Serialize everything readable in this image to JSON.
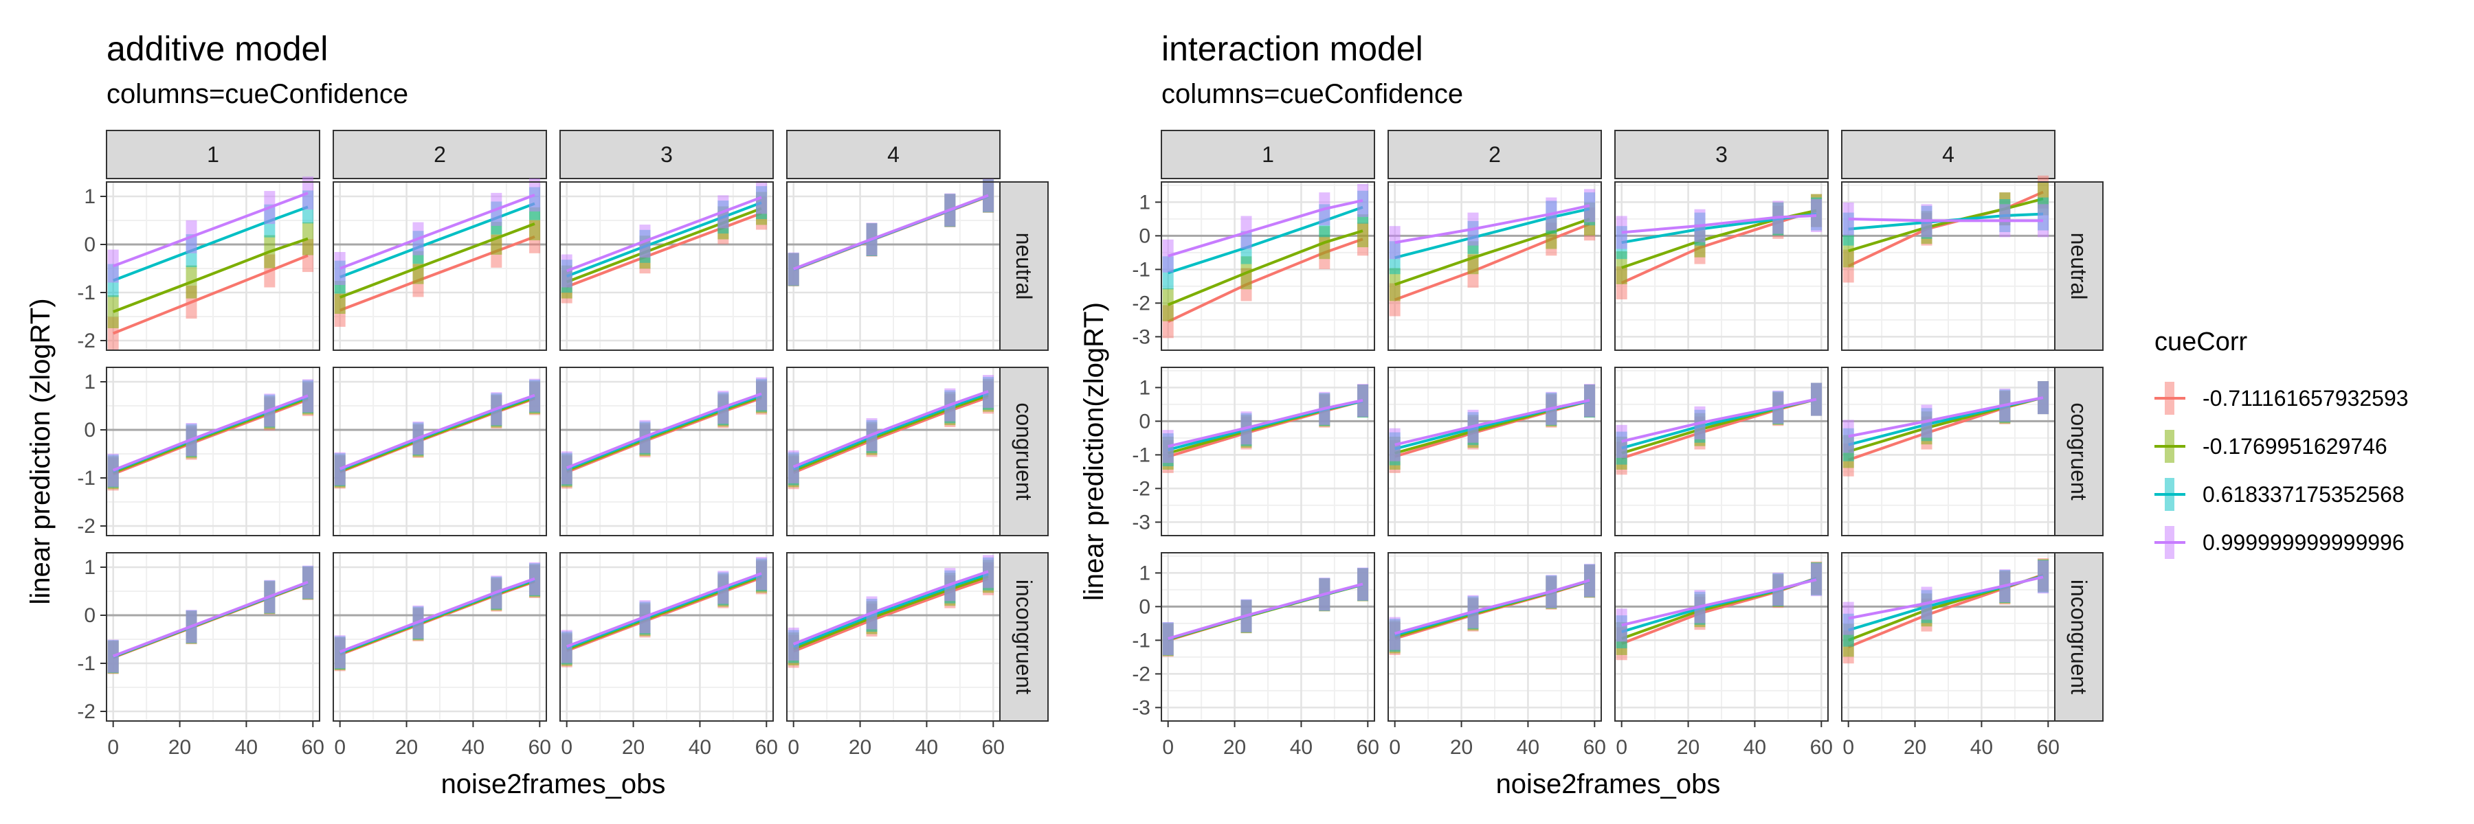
{
  "chart_data": [
    {
      "type": "line",
      "title": "additive model",
      "subtitle": "columns=cueConfidence",
      "xlabel": "noise2frames_obs",
      "ylabel": "linear prediction (zlogRT)",
      "xlim": [
        -2,
        62
      ],
      "ylim": [
        -2.2,
        1.3
      ],
      "x_ticks": [
        "0",
        "20",
        "40",
        "60"
      ],
      "y_ticks": [
        "-2",
        "-1",
        "0",
        "1"
      ],
      "x_tick_values": [
        0,
        20,
        40,
        60
      ],
      "y_tick_values": [
        -2,
        -1,
        0,
        1
      ],
      "col_labels": [
        "1",
        "2",
        "3",
        "4"
      ],
      "row_labels": [
        "neutral",
        "congruent",
        "incongruent"
      ],
      "x": [
        0,
        23.5,
        47,
        58.5
      ],
      "panels": [
        [
          [
            [
              -1.85,
              -1.2,
              -0.55,
              -0.23
            ],
            [
              -1.4,
              -0.78,
              -0.15,
              0.12
            ],
            [
              -0.75,
              -0.13,
              0.49,
              0.78
            ],
            [
              -0.45,
              0.16,
              0.77,
              1.07
            ]
          ],
          [
            [
              -1.37,
              -0.75,
              -0.14,
              0.16
            ],
            [
              -1.1,
              -0.48,
              0.13,
              0.43
            ],
            [
              -0.68,
              -0.06,
              0.55,
              0.85
            ],
            [
              -0.5,
              0.12,
              0.73,
              1.03
            ]
          ],
          [
            [
              -0.88,
              -0.26,
              0.35,
              0.65
            ],
            [
              -0.78,
              -0.16,
              0.45,
              0.75
            ],
            [
              -0.66,
              -0.04,
              0.57,
              0.87
            ],
            [
              -0.55,
              0.07,
              0.68,
              0.98
            ]
          ],
          [
            [
              -0.53,
              0.09,
              0.7,
              1.0
            ],
            [
              -0.52,
              0.1,
              0.71,
              1.01
            ],
            [
              -0.52,
              0.1,
              0.71,
              1.01
            ],
            [
              -0.51,
              0.11,
              0.72,
              1.02
            ]
          ]
        ],
        [
          [
            [
              -0.92,
              -0.28,
              0.33,
              0.63
            ],
            [
              -0.89,
              -0.25,
              0.36,
              0.66
            ],
            [
              -0.86,
              -0.22,
              0.39,
              0.69
            ],
            [
              -0.84,
              -0.2,
              0.41,
              0.71
            ]
          ],
          [
            [
              -0.88,
              -0.24,
              0.37,
              0.65
            ],
            [
              -0.86,
              -0.22,
              0.39,
              0.67
            ],
            [
              -0.83,
              -0.19,
              0.42,
              0.7
            ],
            [
              -0.81,
              -0.17,
              0.44,
              0.72
            ]
          ],
          [
            [
              -0.88,
              -0.23,
              0.38,
              0.66
            ],
            [
              -0.85,
              -0.2,
              0.41,
              0.69
            ],
            [
              -0.82,
              -0.17,
              0.44,
              0.72
            ],
            [
              -0.79,
              -0.14,
              0.47,
              0.75
            ]
          ],
          [
            [
              -0.89,
              -0.22,
              0.4,
              0.68
            ],
            [
              -0.85,
              -0.18,
              0.44,
              0.72
            ],
            [
              -0.81,
              -0.14,
              0.48,
              0.76
            ],
            [
              -0.77,
              -0.1,
              0.52,
              0.8
            ]
          ]
        ],
        [
          [
            [
              -0.88,
              -0.26,
              0.36,
              0.66
            ],
            [
              -0.87,
              -0.25,
              0.37,
              0.67
            ],
            [
              -0.86,
              -0.24,
              0.38,
              0.68
            ],
            [
              -0.85,
              -0.23,
              0.39,
              0.69
            ]
          ],
          [
            [
              -0.82,
              -0.2,
              0.42,
              0.7
            ],
            [
              -0.8,
              -0.18,
              0.44,
              0.72
            ],
            [
              -0.78,
              -0.16,
              0.46,
              0.74
            ],
            [
              -0.76,
              -0.14,
              0.48,
              0.76
            ]
          ],
          [
            [
              -0.74,
              -0.12,
              0.49,
              0.78
            ],
            [
              -0.71,
              -0.09,
              0.52,
              0.81
            ],
            [
              -0.68,
              -0.06,
              0.55,
              0.84
            ],
            [
              -0.65,
              -0.03,
              0.58,
              0.87
            ]
          ],
          [
            [
              -0.75,
              -0.1,
              0.49,
              0.76
            ],
            [
              -0.7,
              -0.05,
              0.54,
              0.81
            ],
            [
              -0.65,
              0.0,
              0.59,
              0.86
            ],
            [
              -0.6,
              0.05,
              0.64,
              0.91
            ]
          ]
        ]
      ]
    },
    {
      "type": "line",
      "title": "interaction model",
      "subtitle": "columns=cueConfidence",
      "xlabel": "noise2frames_obs",
      "ylabel": "linear prediction(zlogRT)",
      "xlim": [
        -2,
        62
      ],
      "ylim": [
        -3.4,
        1.6
      ],
      "x_ticks": [
        "0",
        "20",
        "40",
        "60"
      ],
      "y_ticks": [
        "-3",
        "-2",
        "-1",
        "0",
        "1"
      ],
      "x_tick_values": [
        0,
        20,
        40,
        60
      ],
      "y_tick_values": [
        -3,
        -2,
        -1,
        0,
        1
      ],
      "col_labels": [
        "1",
        "2",
        "3",
        "4"
      ],
      "row_labels": [
        "neutral",
        "congruent",
        "incongruent"
      ],
      "x": [
        0,
        23.5,
        47,
        58.5
      ],
      "panels": [
        [
          [
            [
              -2.55,
              -1.45,
              -0.5,
              -0.1
            ],
            [
              -2.05,
              -1.1,
              -0.2,
              0.15
            ],
            [
              -1.1,
              -0.35,
              0.45,
              0.85
            ],
            [
              -0.6,
              0.1,
              0.8,
              1.05
            ]
          ],
          [
            [
              -1.9,
              -1.05,
              -0.1,
              0.35
            ],
            [
              -1.45,
              -0.65,
              0.1,
              0.5
            ],
            [
              -0.65,
              -0.05,
              0.55,
              0.8
            ],
            [
              -0.2,
              0.2,
              0.65,
              0.9
            ]
          ],
          [
            [
              -1.4,
              -0.35,
              0.4,
              0.75
            ],
            [
              -0.95,
              -0.15,
              0.5,
              0.75
            ],
            [
              -0.2,
              0.2,
              0.5,
              0.65
            ],
            [
              0.1,
              0.3,
              0.55,
              0.6
            ]
          ],
          [
            [
              -0.9,
              0.2,
              0.8,
              1.3
            ],
            [
              -0.45,
              0.25,
              0.8,
              1.1
            ],
            [
              0.2,
              0.4,
              0.6,
              0.65
            ],
            [
              0.5,
              0.45,
              0.45,
              0.45
            ]
          ]
        ],
        [
          [
            [
              -1.05,
              -0.35,
              0.3,
              0.6
            ],
            [
              -0.95,
              -0.3,
              0.33,
              0.6
            ],
            [
              -0.85,
              -0.25,
              0.35,
              0.6
            ],
            [
              -0.75,
              -0.2,
              0.38,
              0.62
            ]
          ],
          [
            [
              -1.05,
              -0.35,
              0.3,
              0.6
            ],
            [
              -0.95,
              -0.3,
              0.33,
              0.6
            ],
            [
              -0.82,
              -0.22,
              0.36,
              0.6
            ],
            [
              -0.7,
              -0.15,
              0.38,
              0.62
            ]
          ],
          [
            [
              -1.1,
              -0.35,
              0.35,
              0.65
            ],
            [
              -0.95,
              -0.25,
              0.38,
              0.65
            ],
            [
              -0.8,
              -0.15,
              0.4,
              0.65
            ],
            [
              -0.6,
              -0.05,
              0.42,
              0.65
            ]
          ],
          [
            [
              -1.15,
              -0.35,
              0.4,
              0.7
            ],
            [
              -0.9,
              -0.2,
              0.42,
              0.7
            ],
            [
              -0.7,
              -0.1,
              0.45,
              0.7
            ],
            [
              -0.45,
              0.0,
              0.48,
              0.7
            ]
          ]
        ],
        [
          [
            [
              -1.0,
              -0.3,
              0.35,
              0.65
            ],
            [
              -0.98,
              -0.3,
              0.35,
              0.65
            ],
            [
              -0.96,
              -0.28,
              0.36,
              0.66
            ],
            [
              -0.95,
              -0.27,
              0.37,
              0.67
            ]
          ],
          [
            [
              -0.95,
              -0.25,
              0.4,
              0.75
            ],
            [
              -0.9,
              -0.22,
              0.42,
              0.76
            ],
            [
              -0.85,
              -0.18,
              0.44,
              0.77
            ],
            [
              -0.8,
              -0.15,
              0.45,
              0.78
            ]
          ],
          [
            [
              -1.1,
              -0.2,
              0.45,
              0.85
            ],
            [
              -0.95,
              -0.12,
              0.48,
              0.83
            ],
            [
              -0.75,
              -0.05,
              0.5,
              0.82
            ],
            [
              -0.55,
              0.0,
              0.52,
              0.8
            ]
          ],
          [
            [
              -1.2,
              -0.25,
              0.55,
              0.95
            ],
            [
              -1.0,
              -0.1,
              0.58,
              0.92
            ],
            [
              -0.7,
              0.0,
              0.6,
              0.9
            ],
            [
              -0.35,
              0.1,
              0.62,
              0.88
            ]
          ]
        ]
      ]
    }
  ],
  "legend": {
    "title": "cueCorr",
    "placement": "right",
    "entries": [
      {
        "label": "-0.711161657932593",
        "color": "#F8766D"
      },
      {
        "label": "-0.1769951629746",
        "color": "#7CAE00"
      },
      {
        "label": "0.618337175352568",
        "color": "#00BFC4"
      },
      {
        "label": "0.999999999999996",
        "color": "#C77CFF"
      }
    ]
  }
}
